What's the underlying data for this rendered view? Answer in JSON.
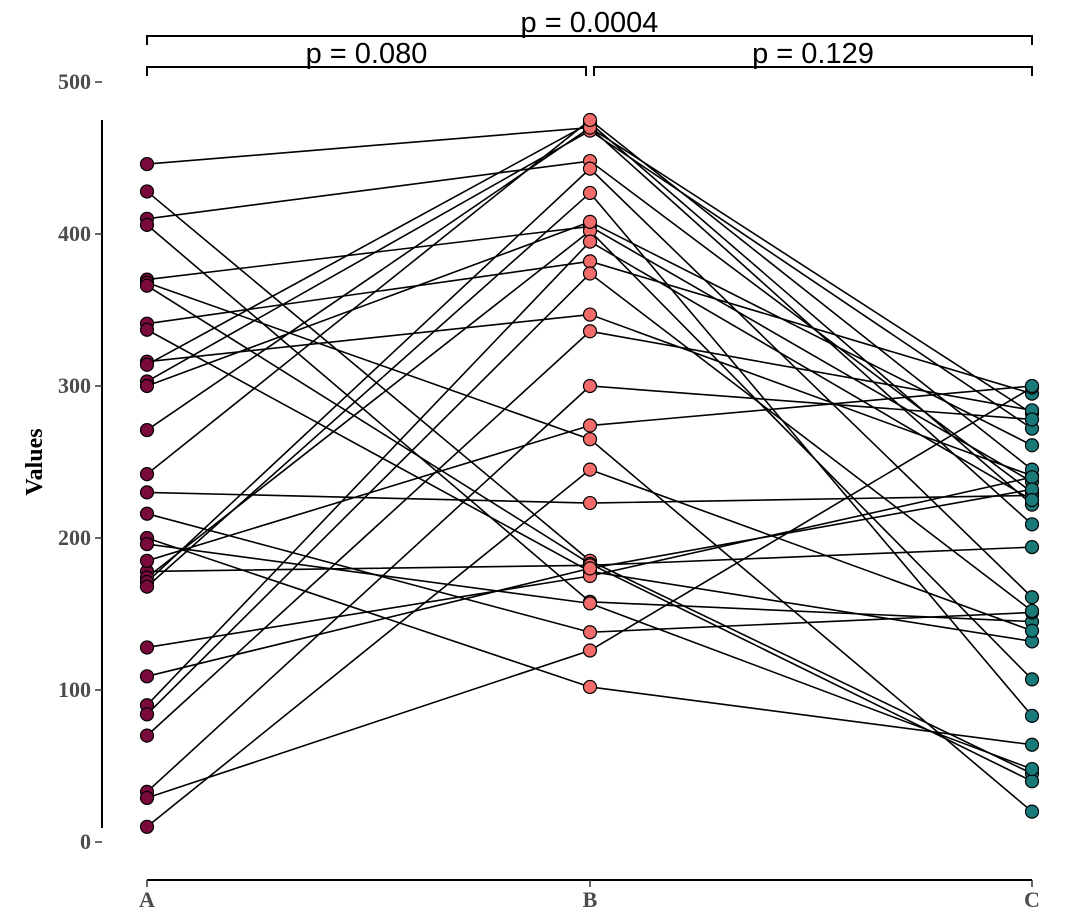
{
  "chart_data": {
    "type": "line",
    "subtype": "paired-dot",
    "title": "",
    "xlabel": "",
    "ylabel": "Values",
    "ylim": [
      0,
      500
    ],
    "yticks": [
      0,
      100,
      200,
      300,
      400,
      500
    ],
    "yticklabels": [
      "0",
      "100",
      "200",
      "300",
      "400",
      "500"
    ],
    "categories": [
      "A",
      "B",
      "C"
    ],
    "colors": {
      "A": "#7a0a3c",
      "B": "#f26b6b",
      "C": "#1a7a7a"
    },
    "comparisons": [
      {
        "from": "A",
        "to": "B",
        "label": "p = 0.080",
        "level": 0
      },
      {
        "from": "B",
        "to": "C",
        "label": "p = 0.129",
        "level": 0
      },
      {
        "from": "A",
        "to": "C",
        "label": "p = 0.0004",
        "level": 1
      }
    ],
    "pairs": [
      [
        446,
        470,
        282
      ],
      [
        428,
        185,
        45
      ],
      [
        410,
        448,
        230
      ],
      [
        406,
        158,
        145
      ],
      [
        370,
        405,
        237
      ],
      [
        368,
        265,
        20
      ],
      [
        366,
        183,
        40
      ],
      [
        341,
        382,
        295
      ],
      [
        337,
        178,
        132
      ],
      [
        316,
        347,
        241
      ],
      [
        314,
        473,
        222
      ],
      [
        303,
        468,
        272
      ],
      [
        271,
        470,
        209
      ],
      [
        242,
        475,
        245
      ],
      [
        230,
        223,
        228
      ],
      [
        216,
        138,
        151
      ],
      [
        200,
        102,
        64
      ],
      [
        196,
        157,
        48
      ],
      [
        178,
        182,
        194
      ],
      [
        174,
        402,
        107
      ],
      [
        171,
        443,
        161
      ],
      [
        168,
        427,
        83
      ],
      [
        128,
        175,
        240
      ],
      [
        109,
        180,
        232
      ],
      [
        90,
        395,
        225
      ],
      [
        84,
        374,
        152
      ],
      [
        70,
        336,
        284
      ],
      [
        33,
        300,
        278
      ],
      [
        29,
        126,
        299
      ],
      [
        10,
        245,
        139
      ],
      [
        185,
        274,
        300
      ],
      [
        300,
        408,
        261
      ]
    ]
  }
}
